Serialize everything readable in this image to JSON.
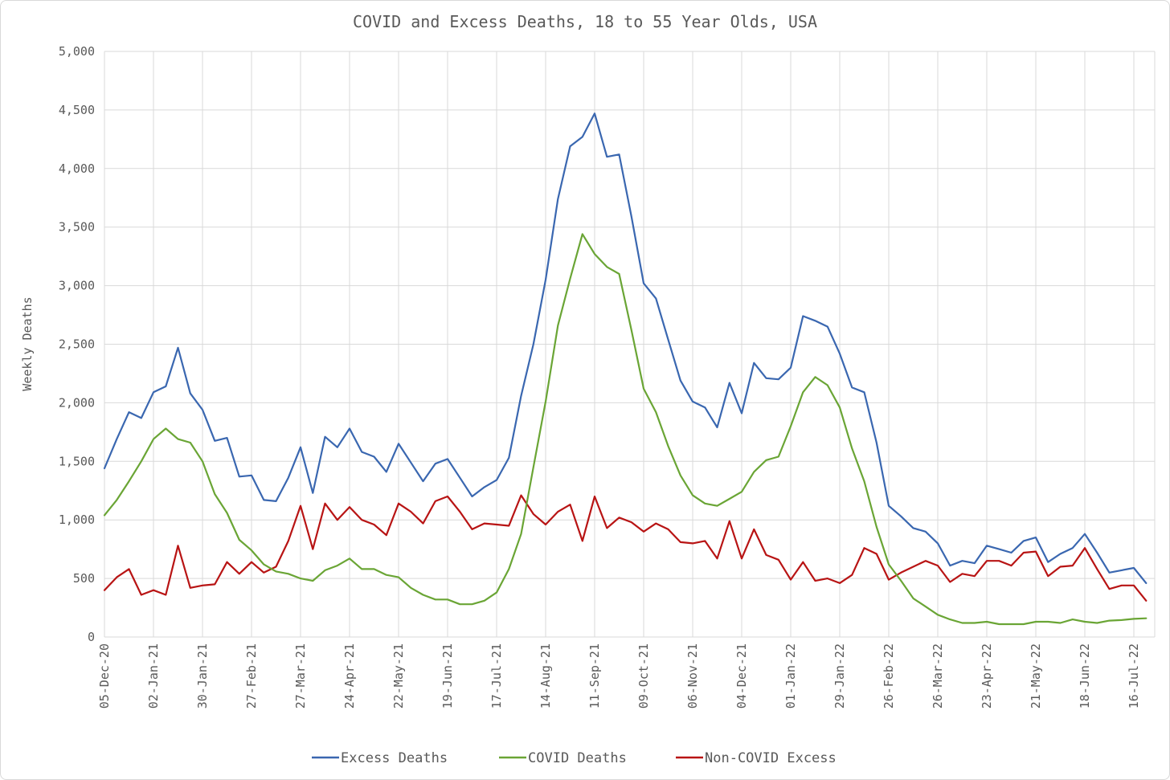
{
  "chart_data": {
    "type": "line",
    "title": "COVID and Excess Deaths, 18 to 55 Year Olds, USA",
    "xlabel": "",
    "ylabel": "Weekly Deaths",
    "ylim": [
      0,
      5000
    ],
    "yticks": [
      0,
      500,
      1000,
      1500,
      2000,
      2500,
      3000,
      3500,
      4000,
      4500,
      5000
    ],
    "ytick_labels": [
      "0",
      "500",
      "1,000",
      "1,500",
      "2,000",
      "2,500",
      "3,000",
      "3,500",
      "4,000",
      "4,500",
      "5,000"
    ],
    "xtick_labels": [
      "05-Dec-20",
      "02-Jan-21",
      "30-Jan-21",
      "27-Feb-21",
      "27-Mar-21",
      "24-Apr-21",
      "22-May-21",
      "19-Jun-21",
      "17-Jul-21",
      "14-Aug-21",
      "11-Sep-21",
      "09-Oct-21",
      "06-Nov-21",
      "04-Dec-21",
      "01-Jan-22",
      "29-Jan-22",
      "26-Feb-22",
      "26-Mar-22",
      "23-Apr-22",
      "21-May-22",
      "18-Jun-22",
      "16-Jul-22"
    ],
    "x_start": "05-Dec-20",
    "x_interval": "weekly",
    "grid": true,
    "legend_position": "bottom",
    "series": [
      {
        "name": "Excess Deaths",
        "color": "#3a67b0",
        "values": [
          1440,
          1690,
          1920,
          1870,
          2090,
          2140,
          2470,
          2080,
          1940,
          1675,
          1700,
          1370,
          1380,
          1170,
          1160,
          1360,
          1620,
          1230,
          1710,
          1620,
          1780,
          1580,
          1540,
          1410,
          1650,
          1490,
          1330,
          1480,
          1520,
          1360,
          1200,
          1280,
          1340,
          1530,
          2060,
          2500,
          3050,
          3740,
          4190,
          4270,
          4470,
          4100,
          4120,
          3590,
          3020,
          2890,
          2540,
          2190,
          2010,
          1960,
          1790,
          2170,
          1910,
          2340,
          2210,
          2200,
          2300,
          2740,
          2700,
          2650,
          2420,
          2130,
          2090,
          1660,
          1120,
          1030,
          930,
          900,
          800,
          610,
          650,
          630,
          780,
          750,
          720,
          820,
          850,
          640,
          710,
          760,
          880,
          720,
          550,
          570,
          590,
          460
        ]
      },
      {
        "name": "COVID Deaths",
        "color": "#6aa535",
        "values": [
          1040,
          1170,
          1330,
          1500,
          1690,
          1780,
          1690,
          1660,
          1500,
          1220,
          1060,
          830,
          740,
          620,
          560,
          540,
          500,
          480,
          570,
          610,
          670,
          580,
          580,
          530,
          510,
          420,
          360,
          320,
          320,
          280,
          280,
          310,
          380,
          580,
          880,
          1450,
          2010,
          2660,
          3060,
          3440,
          3270,
          3160,
          3100,
          2620,
          2120,
          1920,
          1630,
          1380,
          1210,
          1140,
          1120,
          1180,
          1240,
          1410,
          1510,
          1540,
          1800,
          2090,
          2220,
          2150,
          1960,
          1610,
          1330,
          940,
          620,
          480,
          330,
          260,
          190,
          150,
          120,
          120,
          130,
          110,
          110,
          110,
          130,
          130,
          120,
          150,
          130,
          120,
          140,
          145,
          155,
          160
        ]
      },
      {
        "name": "Non-COVID Excess",
        "color": "#b81414",
        "values": [
          400,
          510,
          580,
          360,
          400,
          360,
          780,
          420,
          440,
          450,
          640,
          540,
          640,
          550,
          600,
          820,
          1120,
          750,
          1140,
          1000,
          1110,
          1000,
          960,
          870,
          1140,
          1070,
          970,
          1160,
          1200,
          1070,
          920,
          970,
          960,
          950,
          1210,
          1050,
          960,
          1070,
          1130,
          820,
          1200,
          930,
          1020,
          980,
          900,
          970,
          920,
          810,
          800,
          820,
          670,
          990,
          670,
          920,
          700,
          660,
          490,
          640,
          480,
          500,
          460,
          530,
          760,
          710,
          490,
          550,
          600,
          650,
          610,
          470,
          540,
          520,
          650,
          650,
          610,
          720,
          730,
          520,
          600,
          610,
          760,
          580,
          410,
          440,
          440,
          310
        ]
      }
    ]
  }
}
